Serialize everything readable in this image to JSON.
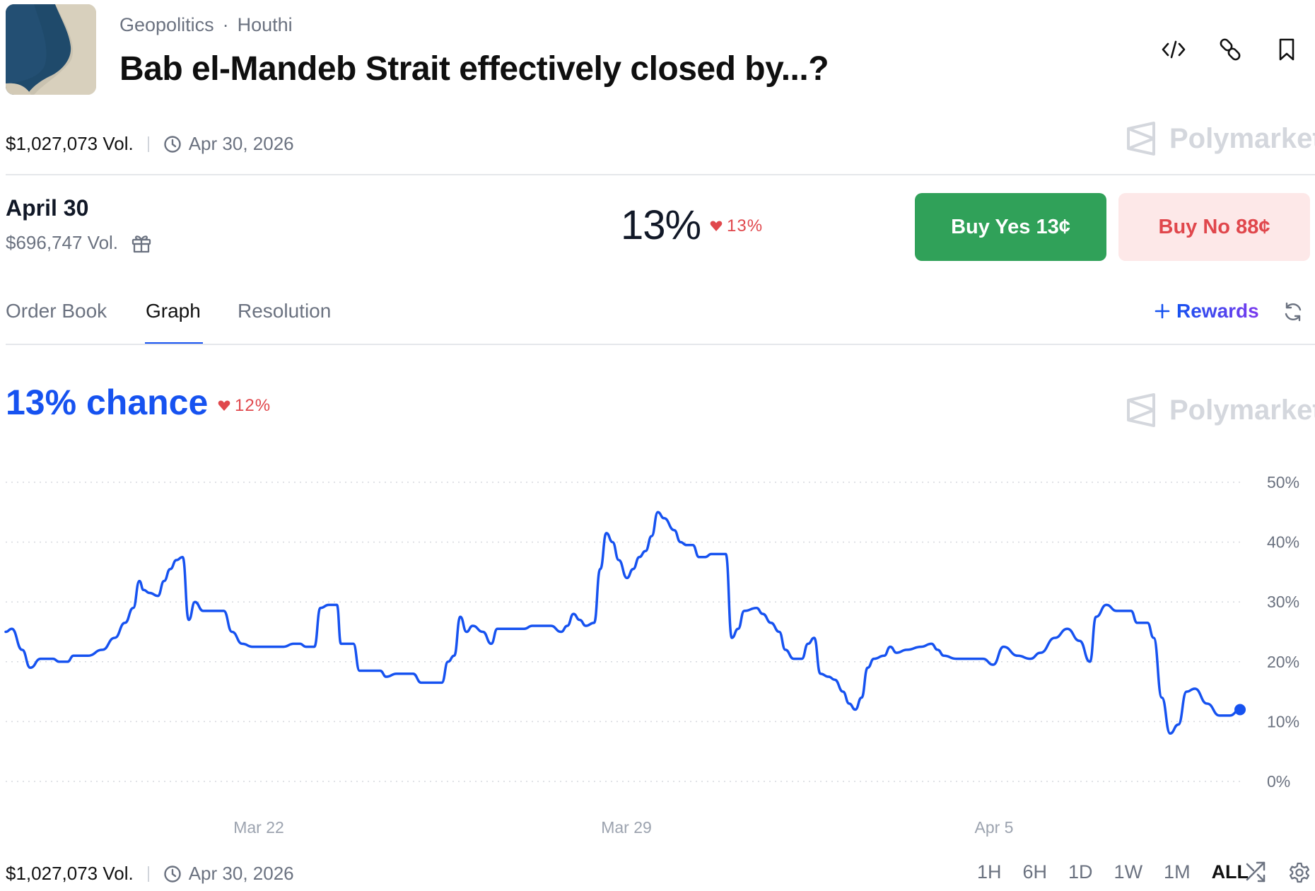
{
  "header": {
    "category": "Geopolitics",
    "separator": "·",
    "tag": "Houthi",
    "title": "Bab el-Mandeb Strait effectively closed by...?",
    "icons": [
      "embed-code-icon",
      "link-icon",
      "bookmark-icon"
    ]
  },
  "meta": {
    "volume": "$1,027,073 Vol.",
    "end_date": "Apr 30, 2026"
  },
  "brand": {
    "name": "Polymarket"
  },
  "outcome": {
    "title": "April 30",
    "volume": "$696,747 Vol.",
    "percent": "13%",
    "change": "13%",
    "change_direction": "down",
    "buy_yes_label": "Buy Yes",
    "buy_yes_price": "13¢",
    "buy_no_label": "Buy No",
    "buy_no_price": "88¢"
  },
  "tabs": [
    {
      "label": "Order Book",
      "active": false
    },
    {
      "label": "Graph",
      "active": true
    },
    {
      "label": "Resolution",
      "active": false
    }
  ],
  "rewards": {
    "label": "Rewards"
  },
  "graph": {
    "chance_label": "13% chance",
    "change": "12%",
    "change_direction": "down"
  },
  "chart_data": {
    "type": "line",
    "series": [
      {
        "values": [
          [
            0,
            25
          ],
          [
            0.3,
            25.5
          ],
          [
            0.8,
            22
          ],
          [
            1.2,
            19
          ],
          [
            1.7,
            20.5
          ],
          [
            2.3,
            20.5
          ],
          [
            2.6,
            20
          ],
          [
            3,
            20
          ],
          [
            3.3,
            21
          ],
          [
            4,
            21
          ],
          [
            4.7,
            22
          ],
          [
            5.3,
            24
          ],
          [
            5.8,
            26.5
          ],
          [
            6.2,
            29
          ],
          [
            6.5,
            33.5
          ],
          [
            6.7,
            32
          ],
          [
            7,
            31.5
          ],
          [
            7.4,
            31
          ],
          [
            7.7,
            33.5
          ],
          [
            8,
            35.5
          ],
          [
            8.3,
            37
          ],
          [
            8.6,
            37.5
          ],
          [
            8.9,
            27
          ],
          [
            9.2,
            30
          ],
          [
            9.6,
            28.5
          ],
          [
            10.6,
            28.5
          ],
          [
            11,
            25
          ],
          [
            11.5,
            23
          ],
          [
            12,
            22.5
          ],
          [
            13.5,
            22.5
          ],
          [
            14,
            23
          ],
          [
            14.3,
            23
          ],
          [
            14.6,
            22.5
          ],
          [
            15,
            22.5
          ],
          [
            15.3,
            29
          ],
          [
            15.7,
            29.5
          ],
          [
            16.1,
            29.5
          ],
          [
            16.3,
            23
          ],
          [
            16.6,
            23
          ],
          [
            16.9,
            23
          ],
          [
            17.2,
            18.5
          ],
          [
            17.6,
            18.5
          ],
          [
            18.2,
            18.5
          ],
          [
            18.5,
            17.5
          ],
          [
            19,
            18
          ],
          [
            19.8,
            18
          ],
          [
            20.2,
            16.5
          ],
          [
            20.5,
            16.5
          ],
          [
            21.2,
            16.5
          ],
          [
            21.5,
            20
          ],
          [
            21.8,
            21
          ],
          [
            22.1,
            27.5
          ],
          [
            22.4,
            25
          ],
          [
            22.7,
            26
          ],
          [
            23.2,
            25
          ],
          [
            23.6,
            23
          ],
          [
            23.9,
            25.5
          ],
          [
            25.2,
            25.5
          ],
          [
            25.6,
            26
          ],
          [
            26.5,
            26
          ],
          [
            27,
            25
          ],
          [
            27.3,
            26
          ],
          [
            27.6,
            28
          ],
          [
            27.9,
            27
          ],
          [
            28.2,
            26
          ],
          [
            28.6,
            26.5
          ],
          [
            28.9,
            35.5
          ],
          [
            29.2,
            41.5
          ],
          [
            29.5,
            40
          ],
          [
            29.8,
            37
          ],
          [
            30.2,
            34
          ],
          [
            30.5,
            35.5
          ],
          [
            30.8,
            37.5
          ],
          [
            31.1,
            38.5
          ],
          [
            31.4,
            41
          ],
          [
            31.7,
            45
          ],
          [
            32,
            44
          ],
          [
            32.5,
            42
          ],
          [
            32.8,
            40
          ],
          [
            33.1,
            39.5
          ],
          [
            33.4,
            39.5
          ],
          [
            33.7,
            37.5
          ],
          [
            34,
            37.5
          ],
          [
            34.3,
            38
          ],
          [
            34.6,
            38
          ],
          [
            35,
            38
          ],
          [
            35.3,
            24
          ],
          [
            35.6,
            25.5
          ],
          [
            35.9,
            28.5
          ],
          [
            36.5,
            29
          ],
          [
            36.8,
            28
          ],
          [
            37.2,
            26.5
          ],
          [
            37.6,
            25
          ],
          [
            37.9,
            22
          ],
          [
            38.3,
            20.5
          ],
          [
            38.7,
            20.5
          ],
          [
            39,
            23
          ],
          [
            39.3,
            24
          ],
          [
            39.6,
            18
          ],
          [
            40,
            17.5
          ],
          [
            40.3,
            17
          ],
          [
            40.7,
            15
          ],
          [
            41,
            13
          ],
          [
            41.3,
            12
          ],
          [
            41.6,
            14
          ],
          [
            41.9,
            19
          ],
          [
            42.2,
            20.5
          ],
          [
            42.7,
            21
          ],
          [
            43,
            22.5
          ],
          [
            43.3,
            21.5
          ],
          [
            43.8,
            22
          ],
          [
            44.5,
            22.5
          ],
          [
            45,
            23
          ],
          [
            45.3,
            22
          ],
          [
            45.6,
            21
          ],
          [
            46.2,
            20.5
          ],
          [
            47,
            20.5
          ],
          [
            47.5,
            20.5
          ],
          [
            48,
            19.5
          ],
          [
            48.5,
            22.5
          ],
          [
            49.2,
            21
          ],
          [
            49.8,
            20.5
          ],
          [
            50.3,
            21.5
          ],
          [
            51,
            24
          ],
          [
            51.6,
            25.5
          ],
          [
            52.2,
            23.5
          ],
          [
            52.7,
            20
          ],
          [
            53,
            27.5
          ],
          [
            53.5,
            29.5
          ],
          [
            54,
            28.5
          ],
          [
            54.7,
            28.5
          ],
          [
            55,
            26.5
          ],
          [
            55.5,
            26.5
          ],
          [
            55.8,
            24
          ],
          [
            56.2,
            14
          ],
          [
            56.6,
            8
          ],
          [
            57,
            9.5
          ],
          [
            57.4,
            15
          ],
          [
            57.8,
            15.5
          ],
          [
            58.4,
            13
          ],
          [
            59,
            11
          ],
          [
            59.5,
            11
          ],
          [
            60,
            12
          ]
        ]
      }
    ],
    "x_ticks": [
      "Mar 22",
      "Mar 29",
      "Apr 5"
    ],
    "y_ticks": [
      "50%",
      "40%",
      "30%",
      "20%",
      "10%",
      "0%"
    ],
    "ylim": [
      0,
      50
    ],
    "grid": true,
    "line_color": "#1652f0"
  },
  "footer": {
    "volume": "$1,027,073 Vol.",
    "end_date": "Apr 30, 2026",
    "ranges": [
      {
        "label": "1H",
        "active": false
      },
      {
        "label": "6H",
        "active": false
      },
      {
        "label": "1D",
        "active": false
      },
      {
        "label": "1W",
        "active": false
      },
      {
        "label": "1M",
        "active": false
      },
      {
        "label": "ALL",
        "active": true
      }
    ]
  }
}
